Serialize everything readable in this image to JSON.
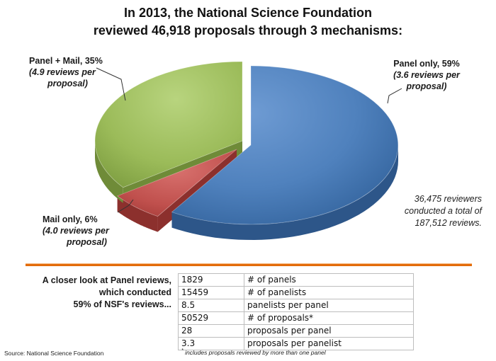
{
  "chart_data": {
    "type": "pie",
    "title": "In 2013, the National Science Foundation reviewed 46,918 proposals through 3 mechanisms:",
    "title_lines": [
      "In 2013, the National Science Foundation",
      "reviewed 46,918 proposals through 3 mechanisms:"
    ],
    "slices": [
      {
        "label": "Panel only, 59%",
        "value": 59,
        "note_lines": [
          "(3.6 reviews per",
          "proposal)"
        ],
        "color": "#4f81bd"
      },
      {
        "label": "Mail only, 6%",
        "value": 6,
        "note_lines": [
          "(4.0 reviews per",
          "proposal)"
        ],
        "color": "#c0504d"
      },
      {
        "label": "Panel + Mail, 35%",
        "value": 35,
        "note_lines": [
          "(4.9 reviews per",
          "proposal)"
        ],
        "color": "#9bbb59"
      }
    ],
    "annotation_lines": [
      "36,475 reviewers",
      "conducted a total of",
      "187,512 reviews."
    ]
  },
  "panel_section": {
    "heading_lines": [
      "A closer look at Panel reviews,",
      "which conducted",
      "59% of NSF's reviews..."
    ],
    "rows": [
      {
        "value": "1829",
        "label": "# of panels"
      },
      {
        "value": "15459",
        "label": "# of panelists"
      },
      {
        "value": "8.5",
        "label": "panelists per panel"
      },
      {
        "value": "50529",
        "label": "# of proposals*"
      },
      {
        "value": "28",
        "label": "proposals per panel"
      },
      {
        "value": "3.3",
        "label": "proposals per panelist"
      }
    ],
    "footnote_mark": "*",
    "footnote_text": " includes proposals reviewed by more than one panel"
  },
  "source": "Source: National Science Foundation"
}
